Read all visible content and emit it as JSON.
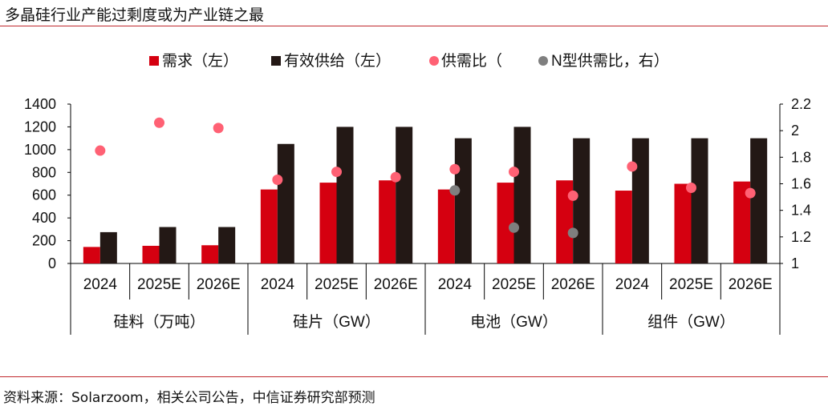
{
  "title": "多晶硅行业产能过剩度或为产业链之最",
  "source": "资料来源：Solarzoom，相关公司公告，中信证券研究部预测",
  "chart_data": {
    "type": "bar",
    "title": "多晶硅行业产能过剩度或为产业链之最",
    "categories": [
      "2024",
      "2025E",
      "2026E",
      "2024",
      "2025E",
      "2026E",
      "2024",
      "2025E",
      "2026E",
      "2024",
      "2025E",
      "2026E"
    ],
    "groups": [
      {
        "label": "硅料（万吨）",
        "span": 3
      },
      {
        "label": "硅片（GW）",
        "span": 3
      },
      {
        "label": "电池（GW）",
        "span": 3
      },
      {
        "label": "组件（GW）",
        "span": 3
      }
    ],
    "left_axis": {
      "ylim": [
        0,
        1400
      ],
      "ticks": [
        "0",
        "200",
        "400",
        "600",
        "800",
        "1000",
        "1200",
        "1400"
      ]
    },
    "right_axis": {
      "ylim": [
        1,
        2.2
      ],
      "ticks": [
        "1",
        "1.2",
        "1.4",
        "1.6",
        "1.8",
        "2",
        "2.2"
      ]
    },
    "legend": [
      "需求（左）",
      "有效供给（左）",
      "供需比（",
      "N型供需比，右）"
    ],
    "legend_placement": "top",
    "colors": {
      "demand": "#d50010",
      "supply": "#231815",
      "ratio": "#ff6174",
      "ntype": "#7f7f7f"
    },
    "series": [
      {
        "name": "需求（左）",
        "axis": "left",
        "kind": "bar",
        "values": [
          145,
          155,
          160,
          650,
          710,
          730,
          650,
          710,
          730,
          640,
          700,
          720
        ]
      },
      {
        "name": "有效供给（左）",
        "axis": "left",
        "kind": "bar",
        "values": [
          275,
          320,
          320,
          1050,
          1200,
          1200,
          1100,
          1200,
          1100,
          1100,
          1100,
          1100
        ]
      },
      {
        "name": "供需比",
        "axis": "right",
        "kind": "scatter",
        "values": [
          1.85,
          2.06,
          2.02,
          1.63,
          1.69,
          1.65,
          1.71,
          1.69,
          1.51,
          1.73,
          1.57,
          1.53
        ]
      },
      {
        "name": "N型供需比",
        "axis": "right",
        "kind": "scatter",
        "values": [
          null,
          null,
          null,
          null,
          null,
          null,
          1.55,
          1.27,
          1.23,
          null,
          null,
          null
        ]
      }
    ]
  }
}
